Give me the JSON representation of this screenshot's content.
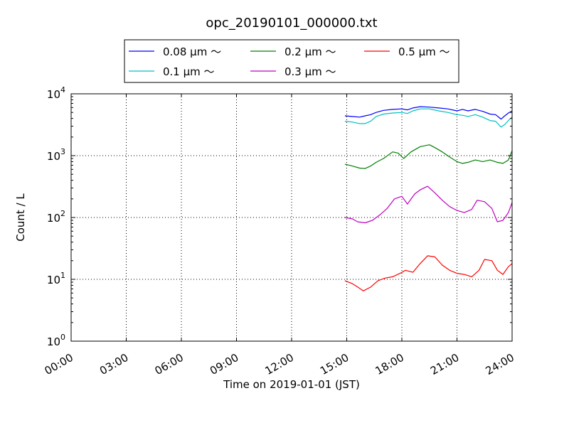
{
  "chart_data": {
    "type": "line",
    "title": "opc_20190101_000000.txt",
    "xlabel": "Time on 2019-01-01 (JST)",
    "ylabel": "Count / L",
    "x_unit": "hours",
    "xlim": [
      0,
      24
    ],
    "x_ticks": [
      0,
      3,
      6,
      9,
      12,
      15,
      18,
      21,
      24
    ],
    "x_tick_labels": [
      "00:00",
      "03:00",
      "06:00",
      "09:00",
      "12:00",
      "15:00",
      "18:00",
      "21:00",
      "24:00"
    ],
    "yscale": "log",
    "ylim": [
      1,
      10000
    ],
    "y_ticks": [
      1,
      10,
      100,
      1000,
      10000
    ],
    "y_tick_labels": [
      {
        "base": "10",
        "exp": "0"
      },
      {
        "base": "10",
        "exp": "1"
      },
      {
        "base": "10",
        "exp": "2"
      },
      {
        "base": "10",
        "exp": "3"
      },
      {
        "base": "10",
        "exp": "4"
      }
    ],
    "grid": true,
    "legend_placement": "top-center, above axes, 3 columns",
    "series": [
      {
        "name": "0.08 μm ～",
        "color": "#0000ff",
        "x": [
          14.9,
          15.3,
          15.7,
          16.0,
          16.3,
          16.6,
          17.0,
          17.5,
          18.0,
          18.3,
          18.6,
          19.0,
          19.5,
          20.0,
          20.5,
          21.0,
          21.3,
          21.6,
          22.0,
          22.4,
          22.8,
          23.1,
          23.4,
          23.6,
          23.8,
          24.0
        ],
        "y": [
          4400,
          4300,
          4200,
          4400,
          4600,
          5000,
          5400,
          5600,
          5700,
          5500,
          5900,
          6200,
          6100,
          5900,
          5700,
          5300,
          5600,
          5300,
          5600,
          5200,
          4700,
          4600,
          3900,
          4400,
          4900,
          5300
        ]
      },
      {
        "name": "0.1 μm ～",
        "color": "#00bfbf",
        "x": [
          14.9,
          15.3,
          15.7,
          16.0,
          16.3,
          16.6,
          17.0,
          17.5,
          18.0,
          18.3,
          18.6,
          19.0,
          19.5,
          20.0,
          20.5,
          21.0,
          21.3,
          21.6,
          22.0,
          22.4,
          22.8,
          23.1,
          23.4,
          23.6,
          23.8,
          24.0
        ],
        "y": [
          3600,
          3500,
          3300,
          3300,
          3600,
          4300,
          4700,
          4900,
          5000,
          4800,
          5300,
          5700,
          5700,
          5300,
          5000,
          4600,
          4500,
          4300,
          4600,
          4200,
          3700,
          3600,
          2900,
          3200,
          3700,
          4200
        ]
      },
      {
        "name": "0.2 μm ～",
        "color": "#008000",
        "x": [
          14.9,
          15.3,
          15.7,
          16.0,
          16.3,
          16.6,
          17.0,
          17.5,
          17.8,
          18.1,
          18.5,
          19.0,
          19.5,
          19.8,
          20.2,
          20.6,
          21.0,
          21.3,
          21.6,
          22.0,
          22.4,
          22.8,
          23.2,
          23.5,
          23.8,
          24.0
        ],
        "y": [
          730,
          680,
          630,
          620,
          680,
          780,
          900,
          1150,
          1100,
          900,
          1150,
          1400,
          1500,
          1350,
          1150,
          950,
          800,
          750,
          780,
          850,
          800,
          850,
          780,
          750,
          850,
          1200
        ]
      },
      {
        "name": "0.3 μm ～",
        "color": "#bf00bf",
        "x": [
          14.9,
          15.3,
          15.6,
          16.0,
          16.4,
          16.8,
          17.2,
          17.6,
          18.0,
          18.3,
          18.7,
          19.0,
          19.4,
          19.8,
          20.2,
          20.6,
          21.0,
          21.4,
          21.8,
          22.1,
          22.5,
          22.9,
          23.2,
          23.5,
          23.8,
          24.0
        ],
        "y": [
          100,
          95,
          85,
          82,
          90,
          110,
          140,
          200,
          220,
          165,
          240,
          280,
          320,
          250,
          190,
          150,
          130,
          120,
          135,
          190,
          180,
          140,
          85,
          90,
          120,
          175
        ]
      },
      {
        "name": "0.5 μm ～",
        "color": "#ff0000",
        "x": [
          14.9,
          15.3,
          15.6,
          15.9,
          16.3,
          16.7,
          17.1,
          17.5,
          17.9,
          18.2,
          18.6,
          19.0,
          19.4,
          19.8,
          20.2,
          20.6,
          21.0,
          21.4,
          21.8,
          22.2,
          22.5,
          22.9,
          23.2,
          23.5,
          23.8,
          24.0
        ],
        "y": [
          9.5,
          8.5,
          7.5,
          6.5,
          7.5,
          9.5,
          10.5,
          11,
          12.5,
          14,
          13,
          18,
          24,
          23,
          17,
          14,
          12.5,
          12,
          11,
          14,
          21,
          20,
          14,
          12,
          16,
          18
        ]
      }
    ]
  }
}
